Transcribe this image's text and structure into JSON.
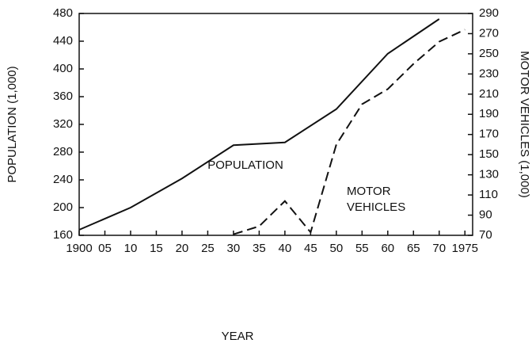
{
  "chart_data": {
    "type": "line",
    "xlabel": "YEAR",
    "ylabel": "POPULATION (1,000)",
    "y2label": "MOTOR VEHICLES (1,000)",
    "annotations": [
      "POPULATION",
      "MOTOR VEHICLES"
    ],
    "xlim": [
      1900,
      1976.5
    ],
    "xticks": [
      1900,
      {
        "value": 1905,
        "label": "05"
      },
      {
        "value": 1910,
        "label": "10"
      },
      {
        "value": 1915,
        "label": "15"
      },
      {
        "value": 1920,
        "label": "20"
      },
      {
        "value": 1925,
        "label": "25"
      },
      {
        "value": 1930,
        "label": "30"
      },
      {
        "value": 1935,
        "label": "35"
      },
      {
        "value": 1940,
        "label": "40"
      },
      {
        "value": 1945,
        "label": "45"
      },
      {
        "value": 1950,
        "label": "50"
      },
      {
        "value": 1955,
        "label": "55"
      },
      {
        "value": 1960,
        "label": "60"
      },
      {
        "value": 1965,
        "label": "65"
      },
      {
        "value": 1970,
        "label": "70"
      },
      1975
    ],
    "ylim": [
      160,
      480
    ],
    "yticks": [
      160,
      200,
      240,
      280,
      320,
      360,
      400,
      440,
      480
    ],
    "y2lim": [
      70,
      290
    ],
    "y2ticks": [
      70,
      90,
      110,
      130,
      150,
      170,
      190,
      210,
      230,
      250,
      270,
      290
    ],
    "series": [
      {
        "name": "POPULATION",
        "color": "#111111",
        "dash": false,
        "x": [
          1900,
          1910,
          1920,
          1930,
          1940,
          1950,
          1960,
          1970
        ],
        "values": [
          168,
          200,
          242,
          290,
          294,
          342,
          422,
          472
        ]
      },
      {
        "name": "MOTOR VEHICLES",
        "color": "#111111",
        "dash": true,
        "axis": "y2",
        "x": [
          1930,
          1935,
          1940,
          1945,
          1950,
          1955,
          1960,
          1965,
          1970,
          1975
        ],
        "values": [
          71,
          79,
          104,
          73,
          160,
          200,
          215,
          240,
          262,
          274
        ]
      }
    ]
  }
}
